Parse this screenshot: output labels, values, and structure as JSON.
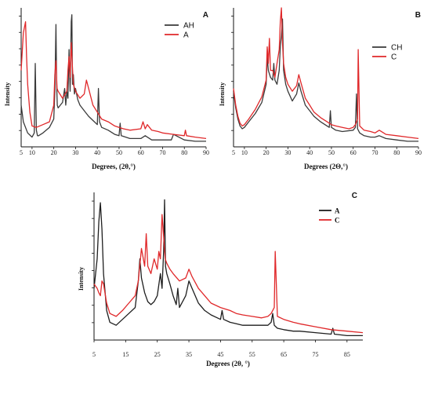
{
  "chart_data": [
    {
      "panel_label": "A",
      "type": "line",
      "xlabel": "Degrees, (2θ,°)",
      "ylabel": "Intensity",
      "xlim": [
        5,
        90
      ],
      "xticks": [
        10,
        20,
        30,
        40,
        50,
        60,
        70,
        80,
        90
      ],
      "ylim": [
        0,
        100
      ],
      "legend_position": "top-right",
      "series": [
        {
          "name": "AH",
          "color": "#3a3a3a",
          "x": [
            5,
            6,
            8,
            10,
            11,
            11.5,
            12,
            12.5,
            13,
            15,
            18,
            20,
            20.5,
            21,
            21.3,
            21.6,
            22,
            24,
            25,
            25.5,
            26,
            26.5,
            27,
            27.5,
            28,
            28.3,
            28.6,
            29,
            29.5,
            30,
            31,
            32,
            34,
            36,
            38,
            40,
            40.5,
            41,
            42,
            45,
            48,
            50,
            50.5,
            51,
            55,
            60,
            62,
            65,
            70,
            74,
            75,
            80,
            85,
            90
          ],
          "y": [
            30,
            18,
            10,
            7,
            10,
            60,
            12,
            8,
            8,
            10,
            14,
            20,
            40,
            88,
            45,
            30,
            28,
            32,
            42,
            30,
            40,
            35,
            70,
            40,
            90,
            95,
            45,
            52,
            38,
            42,
            34,
            30,
            26,
            22,
            19,
            16,
            42,
            18,
            14,
            12,
            9,
            8,
            17,
            8,
            6,
            6,
            8,
            5,
            5,
            5,
            9,
            5,
            4,
            4
          ]
        },
        {
          "name": "A",
          "color": "#e0282a",
          "x": [
            5,
            6,
            7,
            7.5,
            8,
            9,
            10,
            12,
            15,
            18,
            20,
            20.5,
            21,
            21.5,
            22,
            24,
            26,
            26.5,
            27,
            27.5,
            28,
            28.5,
            29,
            30,
            32,
            34,
            35,
            36,
            38,
            40,
            42,
            45,
            48,
            50,
            52,
            55,
            60,
            61,
            62,
            63,
            65,
            68,
            70,
            75,
            80,
            80.5,
            81,
            85,
            90
          ],
          "y": [
            55,
            82,
            90,
            65,
            45,
            25,
            15,
            14,
            16,
            18,
            30,
            52,
            62,
            42,
            40,
            35,
            40,
            55,
            65,
            50,
            75,
            60,
            45,
            40,
            35,
            38,
            48,
            42,
            30,
            25,
            20,
            18,
            15,
            14,
            13,
            12,
            13,
            18,
            13,
            16,
            12,
            11,
            10,
            9,
            8,
            12,
            8,
            7,
            6
          ]
        }
      ]
    },
    {
      "panel_label": "B",
      "type": "line",
      "xlabel": "Degrees (2Θ,°)",
      "ylabel": "Intensity",
      "xlim": [
        5,
        90
      ],
      "xticks": [
        10,
        20,
        30,
        40,
        50,
        60,
        70,
        80,
        90
      ],
      "ylim": [
        0,
        100
      ],
      "legend_position": "top-right",
      "series": [
        {
          "name": "CH",
          "color": "#3a3a3a",
          "x": [
            5,
            6,
            7,
            8,
            9,
            10,
            12,
            15,
            18,
            20,
            20.5,
            21,
            22,
            23,
            23.5,
            24,
            25,
            26,
            26.5,
            27,
            27.5,
            28,
            29,
            30,
            32,
            34,
            35,
            36,
            38,
            40,
            42,
            45,
            48,
            49,
            49.5,
            50,
            52,
            55,
            60,
            61,
            61.5,
            62,
            63,
            65,
            68,
            70,
            72,
            75,
            80,
            85,
            90
          ],
          "y": [
            40,
            28,
            20,
            15,
            13,
            14,
            18,
            24,
            32,
            45,
            65,
            55,
            50,
            48,
            60,
            48,
            45,
            55,
            72,
            80,
            92,
            55,
            45,
            40,
            33,
            38,
            46,
            40,
            30,
            26,
            22,
            18,
            15,
            14,
            26,
            14,
            12,
            11,
            12,
            14,
            38,
            13,
            10,
            8,
            7,
            7,
            8,
            6,
            5,
            4,
            4
          ]
        },
        {
          "name": "C",
          "color": "#e0282a",
          "x": [
            5,
            6,
            7,
            8,
            9,
            10,
            12,
            15,
            18,
            20,
            20.5,
            21,
            21.5,
            22,
            23,
            24,
            25,
            26,
            26.5,
            27,
            27.5,
            28,
            29,
            30,
            32,
            34,
            35,
            36,
            38,
            40,
            42,
            45,
            48,
            50,
            52,
            55,
            58,
            60,
            61,
            62,
            62.3,
            63,
            65,
            68,
            70,
            72,
            75,
            80,
            85,
            90
          ],
          "y": [
            42,
            30,
            22,
            17,
            15,
            16,
            20,
            27,
            36,
            48,
            72,
            60,
            78,
            55,
            55,
            50,
            60,
            70,
            90,
            100,
            75,
            60,
            50,
            45,
            40,
            44,
            52,
            46,
            35,
            30,
            25,
            21,
            18,
            16,
            15,
            14,
            13,
            14,
            16,
            20,
            70,
            15,
            12,
            11,
            10,
            12,
            9,
            8,
            7,
            6
          ]
        }
      ]
    },
    {
      "panel_label": "C",
      "type": "line",
      "xlabel": "Degrees (2θ, °)",
      "ylabel": "Intensity",
      "xlim": [
        5,
        90
      ],
      "xticks": [
        5,
        15,
        25,
        35,
        45,
        55,
        65,
        75,
        85
      ],
      "ylim": [
        0,
        100
      ],
      "legend_position": "top-right",
      "series": [
        {
          "name": "A",
          "color": "#1e1e1e",
          "x": [
            5,
            6,
            6.5,
            7,
            7.5,
            8,
            9,
            10,
            12,
            14,
            16,
            18,
            19,
            19.5,
            20,
            21,
            22,
            23,
            24,
            25,
            26,
            26.5,
            27,
            27.3,
            27.6,
            28,
            29,
            30,
            31,
            31.5,
            32,
            34,
            35,
            36,
            38,
            40,
            42,
            44,
            45,
            45.5,
            46,
            48,
            50,
            52,
            55,
            58,
            60,
            61,
            61.5,
            62,
            63,
            65,
            68,
            70,
            75,
            80,
            80.5,
            81,
            85,
            90
          ],
          "y": [
            35,
            55,
            80,
            93,
            75,
            45,
            20,
            12,
            10,
            14,
            18,
            22,
            40,
            55,
            42,
            32,
            26,
            24,
            26,
            30,
            45,
            35,
            60,
            95,
            50,
            45,
            38,
            30,
            24,
            35,
            22,
            30,
            40,
            35,
            25,
            20,
            17,
            15,
            14,
            20,
            14,
            12,
            11,
            10,
            10,
            10,
            10,
            12,
            18,
            10,
            8,
            7,
            6,
            6,
            5,
            4,
            8,
            4,
            3,
            3
          ]
        },
        {
          "name": "C",
          "color": "#e0282a",
          "x": [
            5,
            6,
            6.5,
            7,
            7.5,
            8,
            9,
            10,
            12,
            14,
            16,
            18,
            19,
            20,
            21,
            21.5,
            22,
            23,
            24,
            25,
            25.5,
            26,
            26.5,
            27,
            27.5,
            28,
            29,
            30,
            32,
            34,
            35,
            36,
            38,
            40,
            42,
            45,
            48,
            50,
            52,
            55,
            58,
            60,
            61,
            62,
            62.3,
            63,
            65,
            68,
            70,
            75,
            80,
            85,
            90
          ],
          "y": [
            38,
            35,
            32,
            30,
            40,
            38,
            25,
            18,
            16,
            20,
            25,
            30,
            40,
            62,
            50,
            72,
            50,
            45,
            55,
            48,
            60,
            55,
            85,
            70,
            55,
            52,
            48,
            45,
            40,
            42,
            48,
            43,
            35,
            30,
            25,
            22,
            20,
            18,
            17,
            16,
            15,
            16,
            18,
            22,
            60,
            16,
            14,
            12,
            11,
            9,
            7,
            6,
            5
          ]
        }
      ]
    }
  ]
}
